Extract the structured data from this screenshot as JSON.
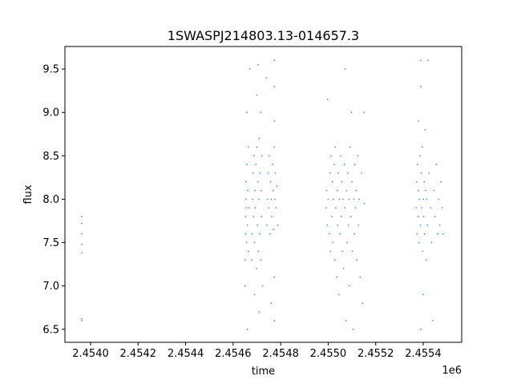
{
  "chart_data": {
    "type": "scatter",
    "title": "1SWASPJ214803.13-014657.3",
    "xlabel": "time",
    "ylabel": "flux",
    "x_offset_label": "1e6",
    "xlim": [
      2453892,
      2455562
    ],
    "ylim": [
      6.35,
      9.76
    ],
    "grid": false,
    "color": "#1f77b4",
    "xticks": [
      2454000,
      2454200,
      2454400,
      2454600,
      2454800,
      2455000,
      2455200,
      2455400
    ],
    "xtick_labels": [
      "2.4540",
      "2.4542",
      "2.4544",
      "2.4546",
      "2.4548",
      "2.4550",
      "2.4552",
      "2.4554"
    ],
    "yticks": [
      6.5,
      7.0,
      7.5,
      8.0,
      8.5,
      9.0,
      9.5
    ],
    "ytick_labels": [
      "6.5",
      "7.0",
      "7.5",
      "8.0",
      "8.5",
      "9.0",
      "9.5"
    ],
    "points": [
      [
        2453963,
        7.8
      ],
      [
        2453963,
        7.72
      ],
      [
        2453963,
        7.6
      ],
      [
        2453963,
        7.48
      ],
      [
        2453963,
        7.38
      ],
      [
        2453963,
        6.62
      ],
      [
        2453963,
        6.6
      ],
      [
        2454650,
        7.0
      ],
      [
        2454650,
        7.3
      ],
      [
        2454652,
        7.6
      ],
      [
        2454652,
        7.8
      ],
      [
        2454654,
        8.0
      ],
      [
        2454654,
        8.2
      ],
      [
        2454656,
        7.9
      ],
      [
        2454656,
        7.5
      ],
      [
        2454658,
        8.4
      ],
      [
        2454658,
        9.0
      ],
      [
        2454660,
        7.7
      ],
      [
        2454660,
        6.5
      ],
      [
        2454662,
        8.1
      ],
      [
        2454664,
        7.4
      ],
      [
        2454664,
        8.6
      ],
      [
        2454668,
        7.9
      ],
      [
        2454670,
        9.5
      ],
      [
        2454678,
        7.3
      ],
      [
        2454680,
        7.6
      ],
      [
        2454682,
        8.0
      ],
      [
        2454684,
        8.3
      ],
      [
        2454686,
        7.8
      ],
      [
        2454688,
        8.5
      ],
      [
        2454690,
        7.5
      ],
      [
        2454692,
        8.1
      ],
      [
        2454694,
        7.9
      ],
      [
        2454696,
        8.4
      ],
      [
        2454698,
        7.2
      ],
      [
        2454700,
        8.6
      ],
      [
        2454702,
        7.7
      ],
      [
        2454704,
        8.2
      ],
      [
        2454706,
        7.4
      ],
      [
        2454708,
        8.0
      ],
      [
        2454710,
        8.7
      ],
      [
        2454712,
        7.6
      ],
      [
        2454714,
        8.3
      ],
      [
        2454716,
        7.3
      ],
      [
        2454718,
        8.1
      ],
      [
        2454720,
        7.8
      ],
      [
        2454722,
        8.5
      ],
      [
        2454724,
        7.0
      ],
      [
        2454700,
        9.2
      ],
      [
        2454710,
        6.7
      ],
      [
        2454690,
        6.9
      ],
      [
        2454716,
        9.0
      ],
      [
        2454705,
        9.55
      ],
      [
        2454742,
        7.7
      ],
      [
        2454745,
        8.0
      ],
      [
        2454748,
        8.3
      ],
      [
        2454750,
        7.9
      ],
      [
        2454752,
        8.5
      ],
      [
        2454755,
        7.6
      ],
      [
        2454758,
        8.2
      ],
      [
        2454760,
        8.0
      ],
      [
        2454763,
        7.8
      ],
      [
        2454765,
        8.4
      ],
      [
        2454768,
        8.1
      ],
      [
        2454770,
        7.65
      ],
      [
        2454772,
        8.6
      ],
      [
        2454774,
        9.6
      ],
      [
        2454774,
        9.3
      ],
      [
        2454774,
        8.9
      ],
      [
        2454774,
        6.6
      ],
      [
        2454774,
        7.1
      ],
      [
        2454776,
        8.0
      ],
      [
        2454778,
        8.3
      ],
      [
        2454780,
        7.9
      ],
      [
        2454784,
        8.15
      ],
      [
        2454788,
        7.7
      ],
      [
        2454740,
        9.4
      ],
      [
        2454760,
        6.8
      ],
      [
        2454992,
        7.9
      ],
      [
        2454994,
        8.1
      ],
      [
        2454996,
        7.7
      ],
      [
        2454998,
        9.15
      ],
      [
        2455000,
        8.0
      ],
      [
        2455005,
        7.6
      ],
      [
        2455008,
        8.3
      ],
      [
        2455010,
        7.4
      ],
      [
        2455012,
        8.5
      ],
      [
        2455015,
        7.8
      ],
      [
        2455018,
        8.2
      ],
      [
        2455020,
        7.5
      ],
      [
        2455022,
        8.0
      ],
      [
        2455025,
        8.4
      ],
      [
        2455028,
        7.3
      ],
      [
        2455030,
        8.6
      ],
      [
        2455032,
        7.9
      ],
      [
        2455035,
        7.1
      ],
      [
        2455038,
        8.1
      ],
      [
        2455040,
        7.7
      ],
      [
        2455042,
        8.3
      ],
      [
        2455045,
        6.9
      ],
      [
        2455048,
        8.0
      ],
      [
        2455050,
        7.6
      ],
      [
        2455052,
        8.5
      ],
      [
        2455055,
        7.8
      ],
      [
        2455058,
        8.2
      ],
      [
        2455060,
        7.4
      ],
      [
        2455062,
        8.0
      ],
      [
        2455065,
        7.2
      ],
      [
        2455068,
        8.4
      ],
      [
        2455070,
        7.9
      ],
      [
        2455072,
        9.5
      ],
      [
        2455075,
        6.6
      ],
      [
        2455078,
        8.1
      ],
      [
        2455080,
        7.5
      ],
      [
        2455082,
        8.3
      ],
      [
        2455085,
        7.7
      ],
      [
        2455088,
        8.0
      ],
      [
        2455090,
        7.0
      ],
      [
        2455092,
        8.6
      ],
      [
        2455095,
        7.8
      ],
      [
        2455098,
        9.0
      ],
      [
        2455100,
        8.2
      ],
      [
        2455102,
        7.4
      ],
      [
        2455105,
        6.5
      ],
      [
        2455108,
        8.0
      ],
      [
        2455110,
        7.6
      ],
      [
        2455112,
        8.4
      ],
      [
        2455115,
        7.9
      ],
      [
        2455118,
        8.1
      ],
      [
        2455120,
        7.3
      ],
      [
        2455125,
        8.5
      ],
      [
        2455128,
        7.7
      ],
      [
        2455130,
        8.0
      ],
      [
        2455135,
        7.1
      ],
      [
        2455140,
        8.3
      ],
      [
        2455145,
        6.8
      ],
      [
        2455150,
        9.0
      ],
      [
        2455152,
        7.95
      ],
      [
        2455370,
        7.9
      ],
      [
        2455372,
        8.2
      ],
      [
        2455374,
        7.6
      ],
      [
        2455376,
        8.4
      ],
      [
        2455378,
        7.8
      ],
      [
        2455380,
        8.1
      ],
      [
        2455382,
        7.5
      ],
      [
        2455384,
        8.0
      ],
      [
        2455386,
        8.5
      ],
      [
        2455388,
        7.7
      ],
      [
        2455390,
        9.6
      ],
      [
        2455390,
        9.3
      ],
      [
        2455390,
        6.5
      ],
      [
        2455392,
        8.3
      ],
      [
        2455394,
        7.9
      ],
      [
        2455396,
        8.6
      ],
      [
        2455398,
        7.4
      ],
      [
        2455400,
        8.0
      ],
      [
        2455402,
        7.8
      ],
      [
        2455404,
        8.2
      ],
      [
        2455406,
        7.6
      ],
      [
        2455408,
        8.8
      ],
      [
        2455410,
        8.1
      ],
      [
        2455412,
        7.3
      ],
      [
        2455415,
        8.0
      ],
      [
        2455418,
        7.7
      ],
      [
        2455420,
        9.6
      ],
      [
        2455425,
        8.3
      ],
      [
        2455430,
        7.9
      ],
      [
        2455435,
        7.5
      ],
      [
        2455440,
        6.6
      ],
      [
        2455445,
        8.1
      ],
      [
        2455450,
        7.8
      ],
      [
        2455455,
        8.4
      ],
      [
        2455460,
        7.6
      ],
      [
        2455465,
        8.0
      ],
      [
        2455470,
        7.7
      ],
      [
        2455475,
        8.2
      ],
      [
        2455480,
        7.9
      ],
      [
        2455484,
        7.6
      ],
      [
        2455400,
        6.9
      ],
      [
        2455380,
        8.9
      ]
    ]
  }
}
